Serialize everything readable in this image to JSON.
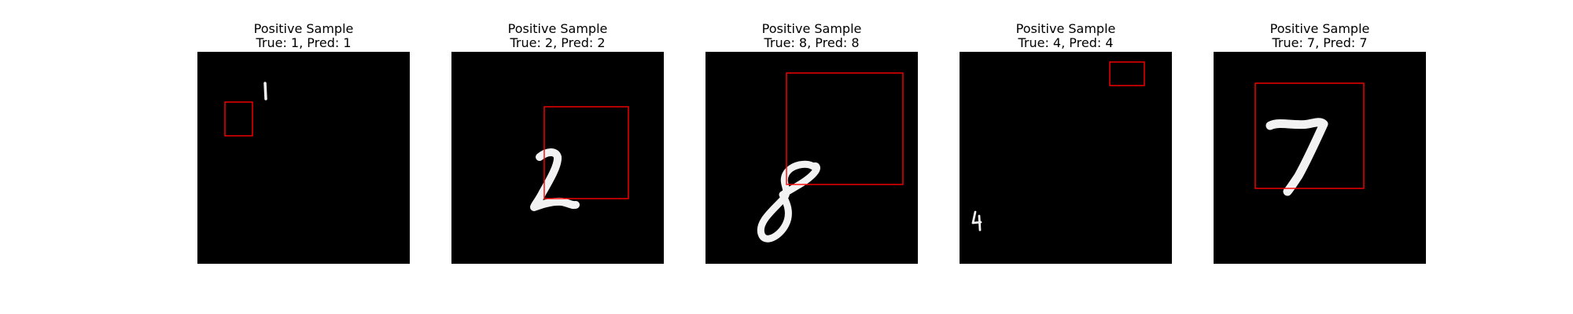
{
  "samples": [
    {
      "label": "Positive Sample",
      "caption": "True: 1, Pred: 1",
      "true_digit": 1,
      "pred_digit": 1,
      "image_colors": {
        "background": "#000000",
        "digit": "#f2f2f2",
        "box": "#ff0000"
      }
    },
    {
      "label": "Positive Sample",
      "caption": "True: 2, Pred: 2",
      "true_digit": 2,
      "pred_digit": 2,
      "image_colors": {
        "background": "#000000",
        "digit": "#f2f2f2",
        "box": "#ff0000"
      }
    },
    {
      "label": "Positive Sample",
      "caption": "True: 8, Pred: 8",
      "true_digit": 8,
      "pred_digit": 8,
      "image_colors": {
        "background": "#000000",
        "digit": "#f2f2f2",
        "box": "#ff0000"
      }
    },
    {
      "label": "Positive Sample",
      "caption": "True: 4, Pred: 4",
      "true_digit": 4,
      "pred_digit": 4,
      "image_colors": {
        "background": "#000000",
        "digit": "#f2f2f2",
        "box": "#ff0000"
      }
    },
    {
      "label": "Positive Sample",
      "caption": "True: 7, Pred: 7",
      "true_digit": 7,
      "pred_digit": 7,
      "image_colors": {
        "background": "#000000",
        "digit": "#f2f2f2",
        "box": "#ff0000"
      }
    }
  ]
}
